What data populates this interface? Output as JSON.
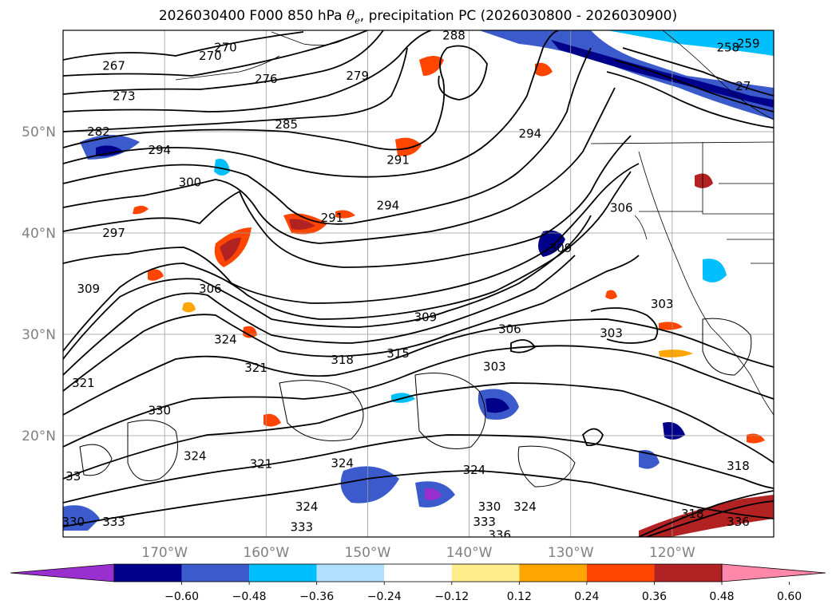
{
  "title": {
    "prefix": "2026030400 F000 850 hPa ",
    "theta": "θ",
    "sub": "e",
    "suffix": ", precipitation PC (2026030800 - 2026030900)"
  },
  "map": {
    "lon_range": [
      -180,
      -110
    ],
    "lat_range": [
      10,
      60
    ],
    "gridlines": true,
    "coastlines": true,
    "lat_labels": [
      {
        "lat": 50,
        "text": "50°N"
      },
      {
        "lat": 40,
        "text": "40°N"
      },
      {
        "lat": 30,
        "text": "30°N"
      },
      {
        "lat": 20,
        "text": "20°N"
      }
    ],
    "lon_labels": [
      {
        "lon": -170,
        "text": "170°W"
      },
      {
        "lon": -160,
        "text": "160°W"
      },
      {
        "lon": -150,
        "text": "150°W"
      },
      {
        "lon": -140,
        "text": "140°W"
      },
      {
        "lon": -130,
        "text": "130°W"
      },
      {
        "lon": -120,
        "text": "120°W"
      }
    ],
    "contour_labels": [
      {
        "text": "267",
        "lon": -175,
        "lat": 56.5
      },
      {
        "text": "270",
        "lon": -165.5,
        "lat": 57.5
      },
      {
        "text": "276",
        "lon": -160,
        "lat": 55.2
      },
      {
        "text": "273",
        "lon": -174,
        "lat": 53.5
      },
      {
        "text": "279",
        "lon": -151,
        "lat": 55.5
      },
      {
        "text": "288",
        "lon": -141.5,
        "lat": 59.5
      },
      {
        "text": "285",
        "lon": -158,
        "lat": 50.7
      },
      {
        "text": "282",
        "lon": -176.5,
        "lat": 50
      },
      {
        "text": "294",
        "lon": -170.5,
        "lat": 48.2
      },
      {
        "text": "291",
        "lon": -147,
        "lat": 47.2
      },
      {
        "text": "294",
        "lon": -134,
        "lat": 49.8
      },
      {
        "text": "300",
        "lon": -167.5,
        "lat": 45
      },
      {
        "text": "291",
        "lon": -153.5,
        "lat": 41.5
      },
      {
        "text": "294",
        "lon": -148,
        "lat": 42.7
      },
      {
        "text": "297",
        "lon": -175,
        "lat": 40
      },
      {
        "text": "306",
        "lon": -125,
        "lat": 42.5
      },
      {
        "text": "309",
        "lon": -131,
        "lat": 38.5
      },
      {
        "text": "306",
        "lon": -165.5,
        "lat": 34.5
      },
      {
        "text": "309",
        "lon": -177.5,
        "lat": 34.5
      },
      {
        "text": "309",
        "lon": -144.3,
        "lat": 31.7
      },
      {
        "text": "306",
        "lon": -136,
        "lat": 30.5
      },
      {
        "text": "303",
        "lon": -121,
        "lat": 33
      },
      {
        "text": "303",
        "lon": -126,
        "lat": 30.1
      },
      {
        "text": "318",
        "lon": -152.5,
        "lat": 27.5
      },
      {
        "text": "315",
        "lon": -147,
        "lat": 28.1
      },
      {
        "text": "324",
        "lon": -164,
        "lat": 29.5
      },
      {
        "text": "321",
        "lon": -161,
        "lat": 26.7
      },
      {
        "text": "321",
        "lon": -178,
        "lat": 25.2
      },
      {
        "text": "303",
        "lon": -137.5,
        "lat": 26.8
      },
      {
        "text": "330",
        "lon": -170.5,
        "lat": 22.5
      },
      {
        "text": "324",
        "lon": -167,
        "lat": 18
      },
      {
        "text": "321",
        "lon": -160.5,
        "lat": 17.2
      },
      {
        "text": "324",
        "lon": -152.5,
        "lat": 17.3
      },
      {
        "text": "324",
        "lon": -139.5,
        "lat": 16.6
      },
      {
        "text": "318",
        "lon": -113.5,
        "lat": 17
      },
      {
        "text": "330",
        "lon": -138,
        "lat": 13
      },
      {
        "text": "324",
        "lon": -134.5,
        "lat": 13
      },
      {
        "text": "333",
        "lon": -175,
        "lat": 11.5
      },
      {
        "text": "330",
        "lon": -179,
        "lat": 11.5
      },
      {
        "text": "33",
        "lon": -179,
        "lat": 16
      },
      {
        "text": "324",
        "lon": -156,
        "lat": 13
      },
      {
        "text": "333",
        "lon": -138.5,
        "lat": 11.5
      },
      {
        "text": "336",
        "lon": -137,
        "lat": 10.2
      },
      {
        "text": "333",
        "lon": -156.5,
        "lat": 11
      },
      {
        "text": "336",
        "lon": -113.5,
        "lat": 11.5
      },
      {
        "text": "318",
        "lon": -118,
        "lat": 12.3
      },
      {
        "text": "259",
        "lon": -112.5,
        "lat": 58.7
      },
      {
        "text": "258",
        "lon": -114.5,
        "lat": 58.3
      },
      {
        "text": "27",
        "lon": -113,
        "lat": 54.5
      },
      {
        "text": "270",
        "lon": -164,
        "lat": 58.3
      }
    ]
  },
  "colorbar": {
    "ticks": [
      "−0.60",
      "−0.48",
      "−0.36",
      "−0.24",
      "−0.12",
      "0.12",
      "0.24",
      "0.36",
      "0.48",
      "0.60"
    ],
    "colors": [
      "#9a2fcf",
      "#00008b",
      "#3b5bcc",
      "#00bfff",
      "#b0e0ff",
      "#ffffff",
      "#ffec8b",
      "#ffa500",
      "#ff4500",
      "#b22222",
      "#ff88aa"
    ]
  },
  "colors": {
    "neg_strong": "#00008b",
    "neg_mid": "#3b5bcc",
    "neg_light": "#00bfff",
    "pos_light": "#ffec8b",
    "pos_mid": "#ffa500",
    "pos_strong": "#ff4500",
    "pos_dark": "#b22222",
    "grid": "#9a9a9a",
    "contour": "#000000"
  }
}
